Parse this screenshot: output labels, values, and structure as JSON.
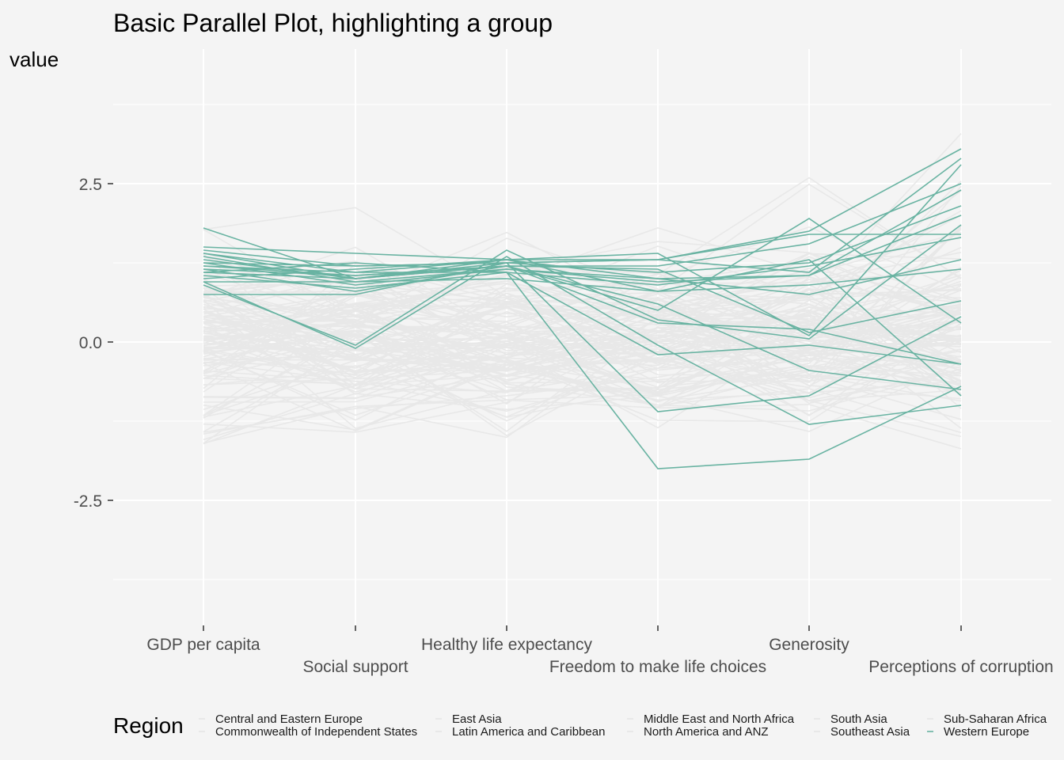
{
  "chart_data": {
    "type": "line",
    "title": "Basic Parallel Plot, highlighting a group",
    "ylabel": "value",
    "xlabel": "",
    "categories": [
      "GDP per capita",
      "Social support",
      "Healthy life expectancy",
      "Freedom to make life choices",
      "Generosity",
      "Perceptions of corruption"
    ],
    "y_ticks": [
      -2.5,
      0.0,
      2.5
    ],
    "y_tick_labels": [
      "-2.5",
      "0.0",
      "2.5"
    ],
    "ylim": [
      -4.3,
      4.6
    ],
    "grid": true,
    "highlight_group": "Western Europe",
    "colors": {
      "highlight": "#69b3a2",
      "other": "#e8e8e8",
      "background": "#f4f4f4",
      "grid": "#ffffff"
    },
    "legend": {
      "title": "Region",
      "placement": "bottom",
      "entries": [
        "Central and Eastern Europe",
        "Commonwealth of Independent States",
        "East Asia",
        "Latin America and Caribbean",
        "Middle East and North Africa",
        "North America and ANZ",
        "South Asia",
        "Southeast Asia",
        "Sub-Saharan Africa",
        "Western Europe"
      ]
    },
    "series_highlight": [
      {
        "values": [
          1.8,
          1.0,
          1.2,
          0.5,
          1.95,
          0.3
        ]
      },
      {
        "values": [
          1.5,
          1.4,
          1.3,
          1.0,
          1.05,
          2.0
        ]
      },
      {
        "values": [
          1.45,
          1.2,
          1.25,
          1.3,
          1.1,
          2.9
        ]
      },
      {
        "values": [
          1.4,
          1.1,
          1.3,
          1.4,
          0.1,
          2.8
        ]
      },
      {
        "values": [
          1.3,
          1.0,
          1.2,
          1.2,
          1.55,
          2.5
        ]
      },
      {
        "values": [
          1.25,
          0.9,
          1.15,
          1.0,
          0.75,
          1.3
        ]
      },
      {
        "values": [
          1.2,
          1.1,
          1.1,
          0.9,
          1.2,
          1.65
        ]
      },
      {
        "values": [
          1.15,
          0.8,
          1.2,
          0.6,
          -0.45,
          -0.75
        ]
      },
      {
        "values": [
          1.1,
          1.0,
          1.25,
          1.1,
          1.25,
          2.15
        ]
      },
      {
        "values": [
          1.05,
          0.85,
          1.1,
          -0.2,
          -0.05,
          -0.35
        ]
      },
      {
        "values": [
          1.0,
          1.15,
          1.3,
          1.3,
          1.7,
          1.7
        ]
      },
      {
        "values": [
          0.95,
          0.95,
          1.0,
          0.8,
          0.9,
          1.15
        ]
      },
      {
        "values": [
          0.9,
          -0.05,
          1.45,
          0.35,
          0.05,
          1.85
        ]
      },
      {
        "values": [
          0.75,
          0.75,
          1.25,
          -1.1,
          -0.85,
          0.4
        ]
      },
      {
        "values": [
          0.95,
          -0.1,
          1.35,
          -0.05,
          -1.3,
          -1.0
        ]
      },
      {
        "values": [
          1.2,
          1.05,
          1.2,
          0.3,
          0.2,
          -0.35
        ]
      },
      {
        "values": [
          1.1,
          1.25,
          1.1,
          -2.0,
          -1.85,
          -0.7
        ]
      },
      {
        "values": [
          1.35,
          0.95,
          1.15,
          0.95,
          1.05,
          2.4
        ]
      },
      {
        "values": [
          1.25,
          1.2,
          1.25,
          1.3,
          1.75,
          3.05
        ]
      },
      {
        "values": [
          1.15,
          1.05,
          1.2,
          1.15,
          0.15,
          0.65
        ]
      },
      {
        "values": [
          1.4,
          1.0,
          1.3,
          0.8,
          1.3,
          -0.85
        ]
      }
    ]
  }
}
